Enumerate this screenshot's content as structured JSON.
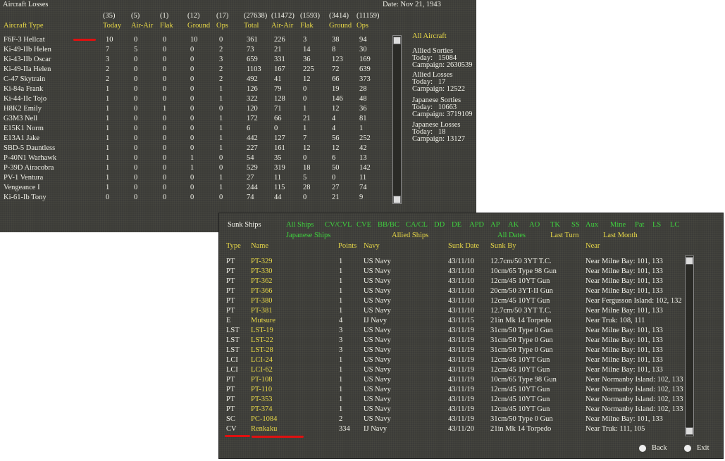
{
  "aircraft_losses": {
    "title": "Aircraft Losses",
    "date": "Date: Nov 21, 1943",
    "totals": [
      "(35)",
      "(5)",
      "(1)",
      "(12)",
      "(17)",
      "(27638)",
      "(11472)",
      "(1593)",
      "(3414)",
      "(11159)"
    ],
    "columns": [
      "Aircraft Type",
      "Today",
      "Air-Air",
      "Flak",
      "Ground",
      "Ops",
      "Total",
      "Air-Air",
      "Flak",
      "Ground",
      "Ops"
    ],
    "rows": [
      [
        "F6F-3 Hellcat",
        10,
        0,
        0,
        10,
        0,
        361,
        226,
        3,
        38,
        94
      ],
      [
        "Ki-49-IIb Helen",
        7,
        5,
        0,
        0,
        2,
        73,
        21,
        14,
        8,
        30
      ],
      [
        "Ki-43-IIb Oscar",
        3,
        0,
        0,
        0,
        3,
        659,
        331,
        36,
        123,
        169
      ],
      [
        "Ki-49-IIa Helen",
        2,
        0,
        0,
        0,
        2,
        1103,
        167,
        225,
        72,
        639
      ],
      [
        "C-47 Skytrain",
        2,
        0,
        0,
        0,
        2,
        492,
        41,
        12,
        66,
        373
      ],
      [
        "Ki-84a Frank",
        1,
        0,
        0,
        0,
        1,
        126,
        79,
        0,
        19,
        28
      ],
      [
        "Ki-44-IIc Tojo",
        1,
        0,
        0,
        0,
        1,
        322,
        128,
        0,
        146,
        48
      ],
      [
        "H8K2 Emily",
        1,
        0,
        1,
        0,
        0,
        120,
        71,
        1,
        12,
        36
      ],
      [
        "G3M3 Nell",
        1,
        0,
        0,
        0,
        1,
        172,
        66,
        21,
        4,
        81
      ],
      [
        "E15K1 Norm",
        1,
        0,
        0,
        0,
        1,
        6,
        0,
        1,
        4,
        1
      ],
      [
        "E13A1 Jake",
        1,
        0,
        0,
        0,
        1,
        442,
        127,
        7,
        56,
        252
      ],
      [
        "SBD-5 Dauntless",
        1,
        0,
        0,
        0,
        1,
        227,
        161,
        12,
        12,
        42
      ],
      [
        "P-40N1 Warhawk",
        1,
        0,
        0,
        1,
        0,
        54,
        35,
        0,
        6,
        13
      ],
      [
        "P-39D Airacobra",
        1,
        0,
        0,
        1,
        0,
        529,
        319,
        18,
        50,
        142
      ],
      [
        "PV-1 Ventura",
        1,
        0,
        0,
        0,
        1,
        27,
        11,
        5,
        0,
        11
      ],
      [
        "Vengeance I",
        1,
        0,
        0,
        0,
        1,
        244,
        115,
        28,
        27,
        74
      ],
      [
        "Ki-61-Ib Tony",
        0,
        0,
        0,
        0,
        0,
        74,
        44,
        0,
        21,
        9
      ]
    ],
    "summary": [
      "All Aircraft",
      "Allied Sorties",
      "Today:   15084",
      "Campaign: 2630539",
      "Allied Losses",
      "Today:   17",
      "Campaign: 12522",
      "Japanese Sorties",
      "Today:   10663",
      "Campaign: 3719109",
      "Japanese Losses",
      "Today:   18",
      "Campaign: 13127"
    ]
  },
  "sunk_ships": {
    "title": "Sunk Ships",
    "filters": [
      "All Ships",
      "CV/CVL",
      "CVE",
      "BB/BC",
      "CA/CL",
      "DD",
      "DE",
      "APD",
      "AP",
      "AK",
      "AO",
      "TK",
      "SS",
      "Aux",
      "Mine",
      "Pat",
      "LS",
      "LC"
    ],
    "filters2": [
      "Japanese Ships",
      "Allied Ships",
      "All Dates",
      "Last Turn",
      "Last Month"
    ],
    "columns": [
      "Type",
      "Name",
      "Points",
      "Navy",
      "Sunk Date",
      "Sunk By",
      "Near"
    ],
    "rows": [
      [
        "PT",
        "PT-329",
        1,
        "US Navy",
        "43/11/10",
        "12.7cm/50 3YT T.C.",
        "Near Milne Bay: 101, 133"
      ],
      [
        "PT",
        "PT-330",
        1,
        "US Navy",
        "43/11/10",
        "10cm/65 Type 98 Gun",
        "Near Milne Bay: 101, 133"
      ],
      [
        "PT",
        "PT-362",
        1,
        "US Navy",
        "43/11/10",
        "12cm/45 10YT Gun",
        "Near Milne Bay: 101, 133"
      ],
      [
        "PT",
        "PT-366",
        1,
        "US Navy",
        "43/11/10",
        "20cm/50 3YT-II Gun",
        "Near Milne Bay: 101, 133"
      ],
      [
        "PT",
        "PT-380",
        1,
        "US Navy",
        "43/11/10",
        "12cm/45 10YT Gun",
        "Near Fergusson Island: 102, 132"
      ],
      [
        "PT",
        "PT-381",
        1,
        "US Navy",
        "43/11/10",
        "12.7cm/50 3YT T.C.",
        "Near Milne Bay: 101, 133"
      ],
      [
        "E",
        "Mutsure",
        4,
        "IJ Navy",
        "43/11/15",
        "21in Mk 14 Torpedo",
        "Near Truk: 108, 111"
      ],
      [
        "LST",
        "LST-19",
        3,
        "US Navy",
        "43/11/19",
        "31cm/50 Type 0 Gun",
        "Near Milne Bay: 101, 133"
      ],
      [
        "LST",
        "LST-22",
        3,
        "US Navy",
        "43/11/19",
        "31cm/50 Type 0 Gun",
        "Near Milne Bay: 101, 133"
      ],
      [
        "LST",
        "LST-28",
        3,
        "US Navy",
        "43/11/19",
        "31cm/50 Type 0 Gun",
        "Near Milne Bay: 101, 133"
      ],
      [
        "LCI",
        "LCI-24",
        1,
        "US Navy",
        "43/11/19",
        "12cm/45 10YT Gun",
        "Near Milne Bay: 101, 133"
      ],
      [
        "LCI",
        "LCI-62",
        1,
        "US Navy",
        "43/11/19",
        "12cm/45 10YT Gun",
        "Near Milne Bay: 101, 133"
      ],
      [
        "PT",
        "PT-108",
        1,
        "US Navy",
        "43/11/19",
        "10cm/65 Type 98 Gun",
        "Near Normanby Island: 102, 133"
      ],
      [
        "PT",
        "PT-110",
        1,
        "US Navy",
        "43/11/19",
        "12cm/45 10YT Gun",
        "Near Normanby Island: 102, 133"
      ],
      [
        "PT",
        "PT-353",
        1,
        "US Navy",
        "43/11/19",
        "12cm/45 10YT Gun",
        "Near Normanby Island: 102, 133"
      ],
      [
        "PT",
        "PT-374",
        1,
        "US Navy",
        "43/11/19",
        "12cm/45 10YT Gun",
        "Near Normanby Island: 102, 133"
      ],
      [
        "SC",
        "PC-1084",
        2,
        "US Navy",
        "43/11/19",
        "31cm/50 Type 0 Gun",
        "Near Milne Bay: 101, 133"
      ],
      [
        "CV",
        "Renkaku",
        334,
        "IJ Navy",
        "43/11/20",
        "21in Mk 14 Torpedo",
        "Near Truk: 111, 105"
      ]
    ],
    "buttons": [
      "Back",
      "Exit"
    ]
  }
}
